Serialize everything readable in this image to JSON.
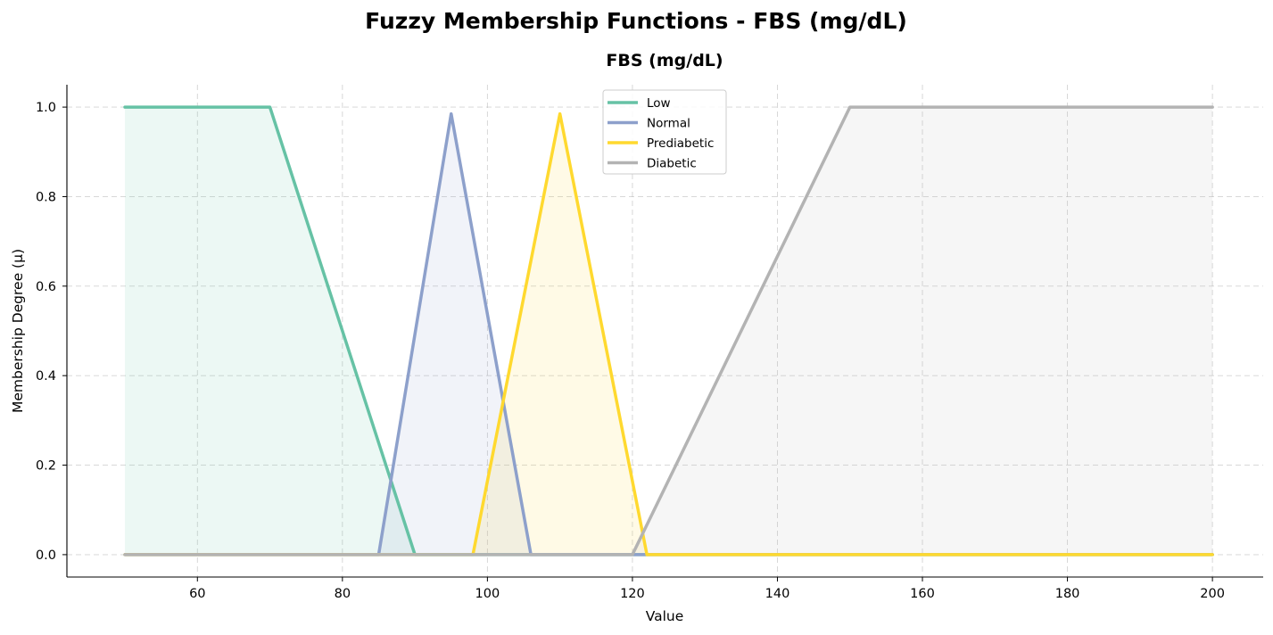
{
  "figure": {
    "suptitle": "Fuzzy Membership Functions - FBS (mg/dL)"
  },
  "chart_data": {
    "type": "line",
    "title": "FBS (mg/dL)",
    "xlabel": "Value",
    "ylabel": "Membership Degree (μ)",
    "xlim": [
      42,
      207
    ],
    "ylim": [
      -0.05,
      1.05
    ],
    "xticks": [
      60,
      80,
      100,
      120,
      140,
      160,
      180,
      200
    ],
    "yticks": [
      0.0,
      0.2,
      0.4,
      0.6,
      0.8,
      1.0
    ],
    "grid": true,
    "legend_position": "upper center",
    "fill_under": true,
    "series": [
      {
        "name": "Low",
        "color": "#66c2a5",
        "x": [
          50,
          70,
          90,
          200
        ],
        "y": [
          1,
          1,
          0,
          0
        ]
      },
      {
        "name": "Normal",
        "color": "#8da0cb",
        "x": [
          50,
          85,
          95,
          106,
          200
        ],
        "y": [
          0,
          0,
          0.985,
          0,
          0
        ]
      },
      {
        "name": "Prediabetic",
        "color": "#ffd92f",
        "x": [
          50,
          98,
          110,
          122,
          200
        ],
        "y": [
          0,
          0,
          0.985,
          0,
          0
        ]
      },
      {
        "name": "Diabetic",
        "color": "#b3b3b3",
        "x": [
          50,
          120,
          150,
          200
        ],
        "y": [
          0,
          0,
          1,
          1
        ]
      }
    ]
  }
}
